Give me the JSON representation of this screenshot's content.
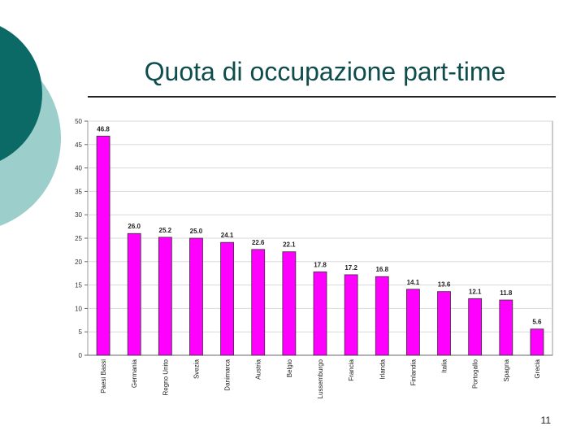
{
  "slide": {
    "title": "Quota di occupazione part-time",
    "page_number": "11"
  },
  "colors": {
    "bar": "#ff00ff",
    "bar_stroke": "#333333",
    "deco_dark": "#0b6a66",
    "deco_light": "#9ccfcc"
  },
  "chart_data": {
    "type": "bar",
    "title": "",
    "xlabel": "",
    "ylabel": "",
    "ylim": [
      0,
      50
    ],
    "yticks": [
      0,
      5,
      10,
      15,
      20,
      25,
      30,
      35,
      40,
      45,
      50
    ],
    "grid": true,
    "categories": [
      "Paesi Bassi",
      "Germania",
      "Regno Unito",
      "Svezia",
      "Danimarca",
      "Austria",
      "Belgio",
      "Lussemburgo",
      "Francia",
      "Irlanda",
      "Finlandia",
      "Italia",
      "Portogallo",
      "Spagna",
      "Grecia"
    ],
    "values": [
      46.8,
      26.0,
      25.2,
      25.0,
      24.1,
      22.6,
      22.1,
      17.8,
      17.2,
      16.8,
      14.1,
      13.6,
      12.1,
      11.8,
      5.6
    ],
    "value_labels": [
      "46.8",
      "26.0",
      "25.2",
      "25.0",
      "24.1",
      "22.6",
      "22.1",
      "17.8",
      "17.2",
      "16.8",
      "14.1",
      "13.6",
      "12.1",
      "11.8",
      "5.6"
    ]
  }
}
